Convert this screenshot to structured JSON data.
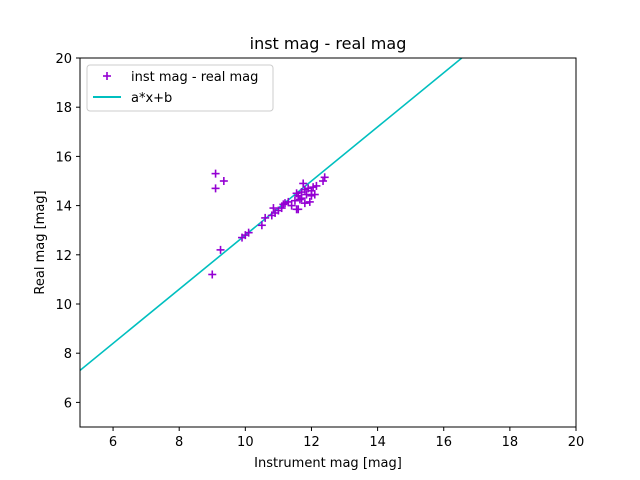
{
  "chart_data": {
    "type": "scatter",
    "title": "inst mag - real mag",
    "xlabel": "Instrument mag [mag]",
    "ylabel": "Real mag [mag]",
    "xlim": [
      5,
      20
    ],
    "ylim": [
      5,
      20
    ],
    "xticks": [
      6,
      8,
      10,
      12,
      14,
      16,
      18,
      20
    ],
    "yticks": [
      6,
      8,
      10,
      12,
      14,
      16,
      18,
      20
    ],
    "grid": false,
    "legend_position": "upper-left",
    "series": [
      {
        "name": "inst mag - real mag",
        "kind": "scatter",
        "marker": "plus",
        "color": "#9400d3",
        "points": [
          [
            9.0,
            11.2
          ],
          [
            9.1,
            14.7
          ],
          [
            9.1,
            15.3
          ],
          [
            9.25,
            12.2
          ],
          [
            9.35,
            15.0
          ],
          [
            9.9,
            12.7
          ],
          [
            10.0,
            12.8
          ],
          [
            10.1,
            12.9
          ],
          [
            10.5,
            13.2
          ],
          [
            10.6,
            13.5
          ],
          [
            10.8,
            13.6
          ],
          [
            10.85,
            13.9
          ],
          [
            10.9,
            13.7
          ],
          [
            11.0,
            13.8
          ],
          [
            11.1,
            13.9
          ],
          [
            11.15,
            14.05
          ],
          [
            11.2,
            14.1
          ],
          [
            11.3,
            14.15
          ],
          [
            11.4,
            14.0
          ],
          [
            11.5,
            14.2
          ],
          [
            11.55,
            13.85
          ],
          [
            11.6,
            14.4
          ],
          [
            11.6,
            13.85
          ],
          [
            11.65,
            14.25
          ],
          [
            11.7,
            14.55
          ],
          [
            11.75,
            14.9
          ],
          [
            11.8,
            14.1
          ],
          [
            11.85,
            14.45
          ],
          [
            11.9,
            14.7
          ],
          [
            11.95,
            14.15
          ],
          [
            12.0,
            14.6
          ],
          [
            12.05,
            14.75
          ],
          [
            12.1,
            14.45
          ],
          [
            12.15,
            14.8
          ],
          [
            12.35,
            15.0
          ],
          [
            12.4,
            15.15
          ],
          [
            11.55,
            14.5
          ],
          [
            11.7,
            14.3
          ],
          [
            11.8,
            14.65
          ],
          [
            12.0,
            14.4
          ]
        ]
      },
      {
        "name": "a*x+b",
        "kind": "line",
        "color": "#00bfbf",
        "slope": 1.1,
        "intercept": 1.8
      }
    ]
  }
}
